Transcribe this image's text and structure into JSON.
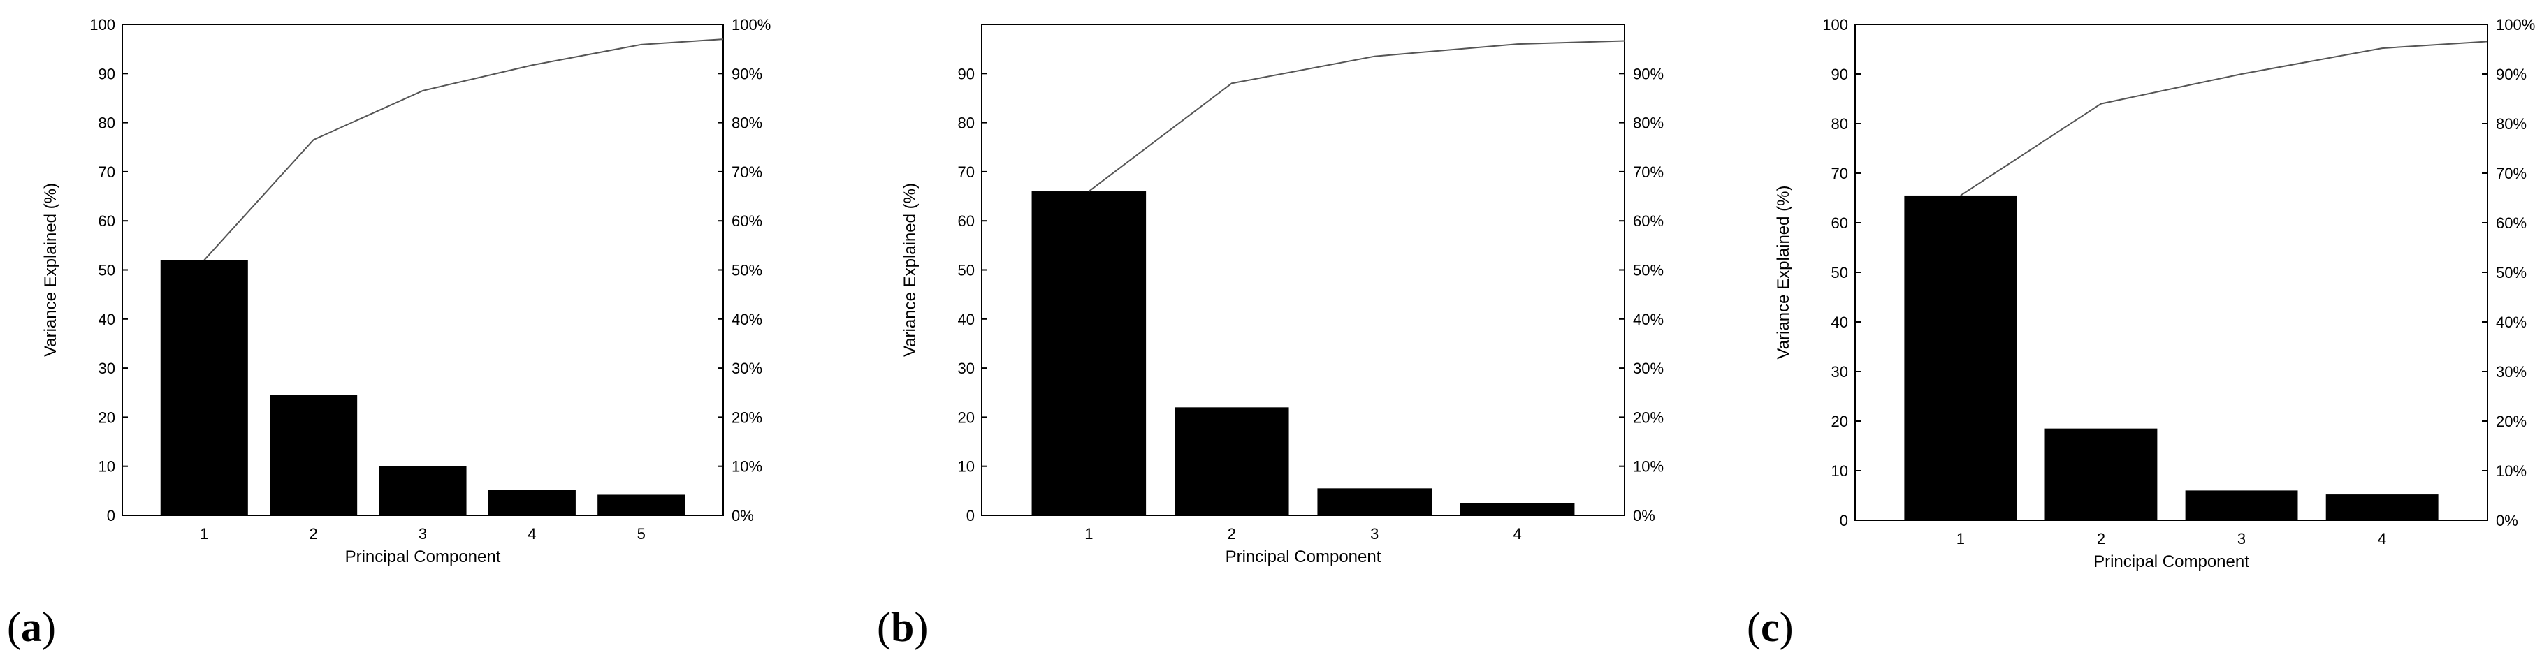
{
  "chart_data": [
    {
      "panel": "(a)",
      "panel_letter": "a",
      "type": "bar",
      "categories": [
        "1",
        "2",
        "3",
        "4",
        "5"
      ],
      "values": [
        52,
        24.5,
        10,
        5.2,
        4.2
      ],
      "cumulative": [
        52,
        76.5,
        86.5,
        91.7,
        95.9
      ],
      "xlabel": "Principal Component",
      "ylabel": "Variance Explained (%)",
      "ylim": [
        0,
        100
      ],
      "y_ticks": [
        "0",
        "10",
        "20",
        "30",
        "40",
        "50",
        "60",
        "70",
        "80",
        "90",
        "100"
      ],
      "y2_ticks": [
        "0%",
        "10%",
        "20%",
        "30%",
        "40%",
        "50%",
        "60%",
        "70%",
        "80%",
        "90%",
        "100%"
      ]
    },
    {
      "panel": "(b)",
      "panel_letter": "b",
      "type": "bar",
      "categories": [
        "1",
        "2",
        "3",
        "4"
      ],
      "values": [
        66,
        22,
        5.5,
        2.5
      ],
      "cumulative": [
        66,
        88,
        93.5,
        96
      ],
      "xlabel": "Principal Component",
      "ylabel": "Variance Explained (%)",
      "ylim": [
        0,
        100
      ],
      "y_ticks": [
        "0",
        "10",
        "20",
        "30",
        "40",
        "50",
        "60",
        "70",
        "80",
        "90"
      ],
      "y2_ticks": [
        "0%",
        "10%",
        "20%",
        "30%",
        "40%",
        "50%",
        "60%",
        "70%",
        "80%",
        "90%"
      ]
    },
    {
      "panel": "(c)",
      "panel_letter": "c",
      "type": "bar",
      "categories": [
        "1",
        "2",
        "3",
        "4"
      ],
      "values": [
        65.5,
        18.5,
        6,
        5.2
      ],
      "cumulative": [
        65.5,
        84,
        90,
        95.2
      ],
      "xlabel": "Principal Component",
      "ylabel": "Variance Explained (%)",
      "ylim": [
        0,
        100
      ],
      "y_ticks": [
        "0",
        "10",
        "20",
        "30",
        "40",
        "50",
        "60",
        "70",
        "80",
        "90",
        "100"
      ],
      "y2_ticks": [
        "0%",
        "10%",
        "20%",
        "30%",
        "40%",
        "50%",
        "60%",
        "70%",
        "80%",
        "90%",
        "100%"
      ]
    }
  ]
}
